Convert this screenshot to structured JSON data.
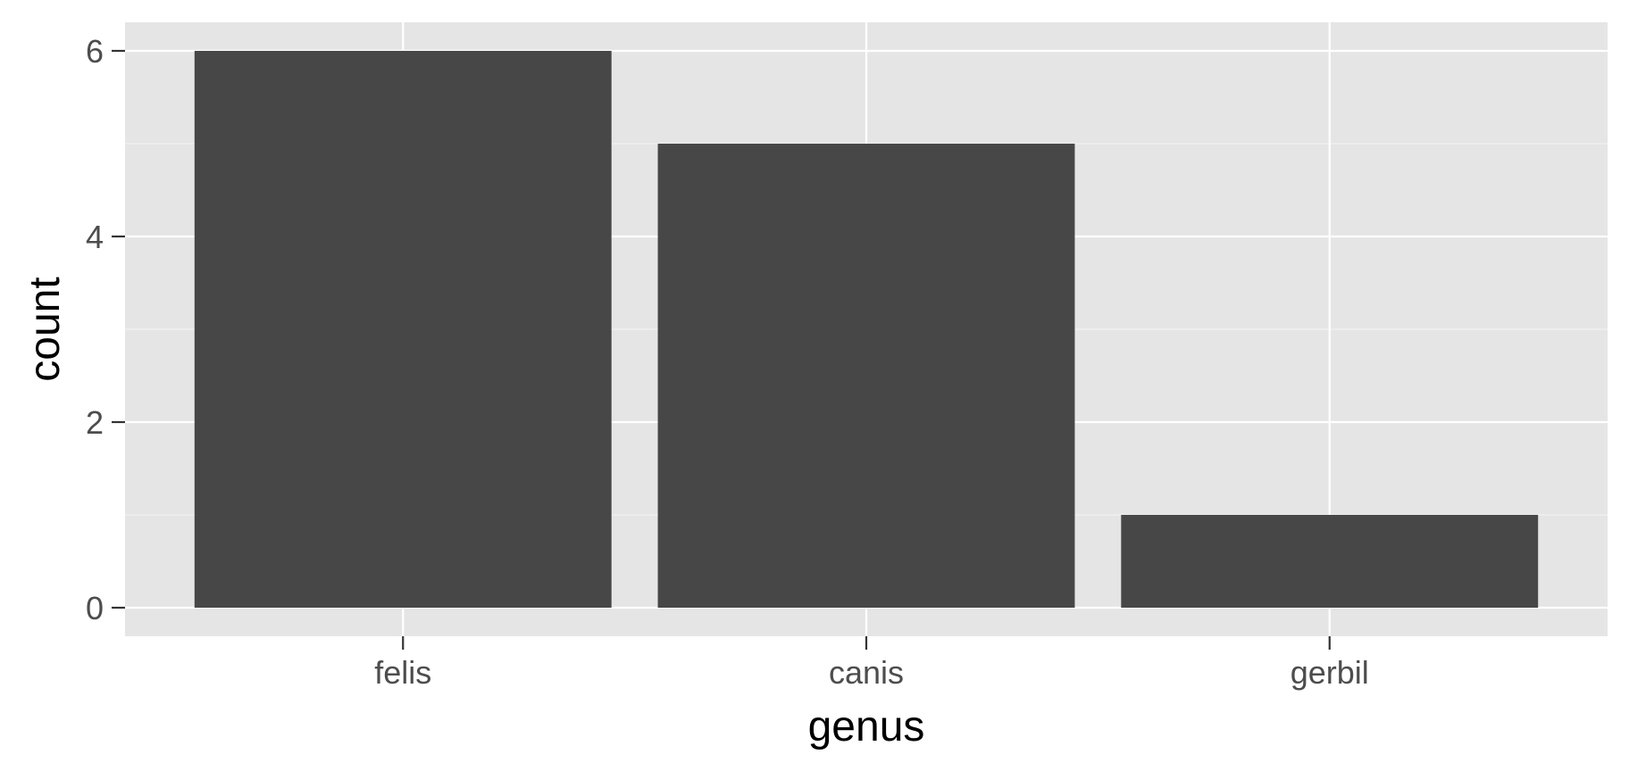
{
  "chart_data": {
    "type": "bar",
    "categories": [
      "felis",
      "canis",
      "gerbil"
    ],
    "values": [
      6,
      5,
      1
    ],
    "title": "",
    "xlabel": "genus",
    "ylabel": "count",
    "ylim": [
      -0.15,
      6.3
    ],
    "yticks": [
      0,
      2,
      4,
      6
    ],
    "grid": true,
    "legend": "none"
  },
  "colors": {
    "panel_background": "#e5e5e5",
    "grid_major": "#ffffff",
    "grid_minor": "#f2f2f2",
    "bar_fill": "#474747",
    "tick_text": "#4d4d4d",
    "axis_title": "#000000"
  }
}
